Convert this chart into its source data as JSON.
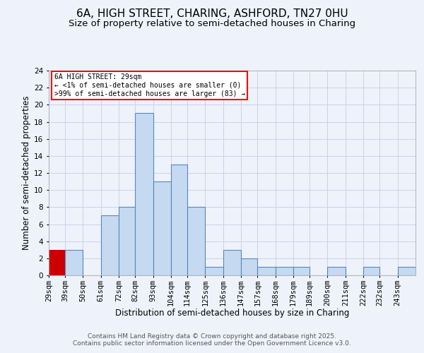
{
  "title": "6A, HIGH STREET, CHARING, ASHFORD, TN27 0HU",
  "subtitle": "Size of property relative to semi-detached houses in Charing",
  "xlabel": "Distribution of semi-detached houses by size in Charing",
  "ylabel": "Number of semi-detached properties",
  "footer1": "Contains HM Land Registry data © Crown copyright and database right 2025.",
  "footer2": "Contains public sector information licensed under the Open Government Licence v3.0.",
  "bin_labels": [
    "29sqm",
    "39sqm",
    "50sqm",
    "61sqm",
    "72sqm",
    "82sqm",
    "93sqm",
    "104sqm",
    "114sqm",
    "125sqm",
    "136sqm",
    "147sqm",
    "157sqm",
    "168sqm",
    "179sqm",
    "189sqm",
    "200sqm",
    "211sqm",
    "222sqm",
    "232sqm",
    "243sqm"
  ],
  "bin_edges": [
    29,
    39,
    50,
    61,
    72,
    82,
    93,
    104,
    114,
    125,
    136,
    147,
    157,
    168,
    179,
    189,
    200,
    211,
    222,
    232,
    243,
    254
  ],
  "bar_counts": [
    3,
    3,
    0,
    7,
    8,
    19,
    11,
    13,
    8,
    1,
    3,
    2,
    1,
    1,
    1,
    0,
    1,
    0,
    1,
    0,
    1
  ],
  "highlight_color": "#cc0000",
  "normal_color": "#c5d9f1",
  "normal_edge_color": "#5588bb",
  "highlight_edge_color": "#cc0000",
  "highlight_bins": [
    0
  ],
  "annotation_text_line1": "6A HIGH STREET: 29sqm",
  "annotation_text_line2": "← <1% of semi-detached houses are smaller (0)",
  "annotation_text_line3": ">99% of semi-detached houses are larger (83) →",
  "ylim": [
    0,
    24
  ],
  "yticks": [
    0,
    2,
    4,
    6,
    8,
    10,
    12,
    14,
    16,
    18,
    20,
    22,
    24
  ],
  "bg_color": "#eef2fb",
  "grid_color": "#c8d4e8",
  "title_fontsize": 11,
  "subtitle_fontsize": 9.5,
  "axis_label_fontsize": 8.5,
  "tick_fontsize": 7.5,
  "footer_fontsize": 6.5
}
